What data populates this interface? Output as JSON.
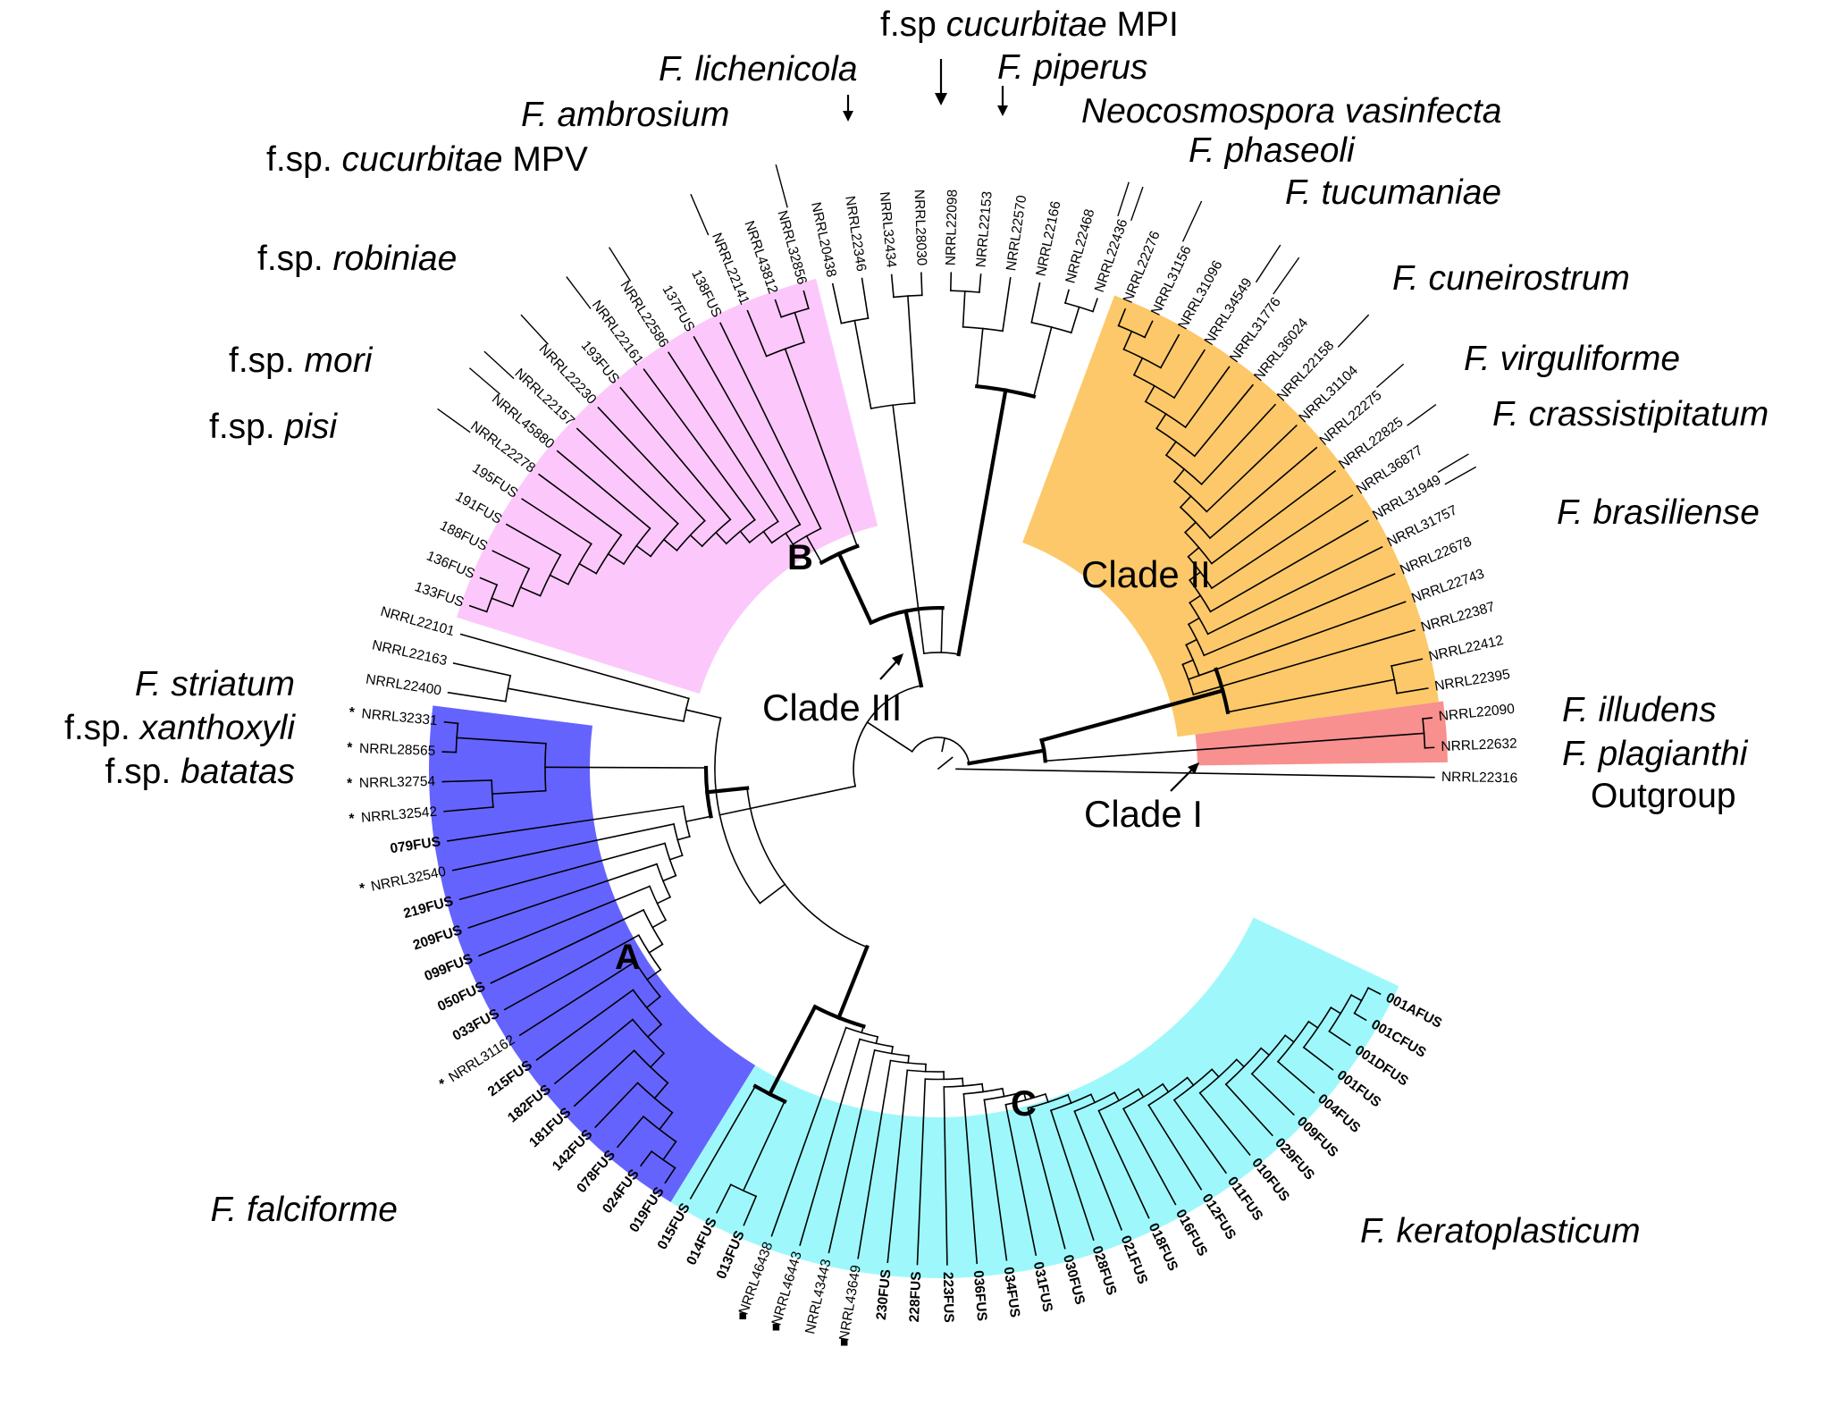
{
  "colors": {
    "pink": "#fcc8fb",
    "orange": "#fcc869",
    "red": "#f7908f",
    "blue": "#6563fd",
    "cyan": "#9ef8fb"
  },
  "nodes": {
    "A": "A",
    "B": "B",
    "C": "C"
  },
  "clades": {
    "c1": "Clade I",
    "c2": "Clade II",
    "c3": "Clade III"
  },
  "groups": {
    "cucurbitae_mpi": [
      "f.sp ",
      "cucurbitae",
      " MPI"
    ],
    "lichenicola": [
      "",
      "F. lichenicola",
      ""
    ],
    "piperus": [
      "",
      "F. piperus",
      ""
    ],
    "ambrosium": [
      "",
      "F. ambrosium",
      ""
    ],
    "neocosmospora": [
      "",
      "Neocosmospora vasinfecta",
      ""
    ],
    "cucurbitae_mpv": [
      "f.sp. ",
      "cucurbitae",
      " MPV"
    ],
    "phaseoli": [
      "",
      "F. phaseoli",
      ""
    ],
    "tucumaniae": [
      "",
      "F. tucumaniae",
      ""
    ],
    "robiniae": [
      "f.sp. ",
      "robiniae",
      ""
    ],
    "cuneirostrum": [
      "",
      "F. cuneirostrum",
      ""
    ],
    "mori": [
      "f.sp. ",
      "mori",
      ""
    ],
    "virguliforme": [
      "",
      "F. virguliforme",
      ""
    ],
    "pisi": [
      "f.sp. ",
      "pisi",
      ""
    ],
    "crassistipitatum": [
      "",
      "F. crassistipitatum",
      ""
    ],
    "brasiliense": [
      "",
      "F. brasiliense",
      ""
    ],
    "striatum": [
      "",
      "F. striatum",
      ""
    ],
    "xanthoxyli": [
      "f.sp. ",
      "xanthoxyli",
      ""
    ],
    "batatas": [
      "f.sp. ",
      "batatas",
      ""
    ],
    "illudens": [
      "",
      "F. illudens",
      ""
    ],
    "plagianthi": [
      "",
      "F. plagianthi",
      ""
    ],
    "outgroup": [
      "Outgroup",
      "",
      ""
    ],
    "falciforme": [
      "",
      "F. falciforme",
      ""
    ],
    "keratoplasticum": [
      "",
      "F. keratoplasticum",
      ""
    ]
  },
  "markers": {
    "star": "*",
    "square": "■"
  },
  "tips": [
    {
      "label": "NRRL22316",
      "bold": false
    },
    {
      "label": "NRRL22632",
      "bold": false
    },
    {
      "label": "NRRL22090",
      "bold": false
    },
    {
      "label": "NRRL22395",
      "bold": false
    },
    {
      "label": "NRRL22412",
      "bold": false
    },
    {
      "label": "NRRL22387",
      "bold": false
    },
    {
      "label": "NRRL22743",
      "bold": false
    },
    {
      "label": "NRRL22678",
      "bold": false
    },
    {
      "label": "NRRL31757",
      "bold": false
    },
    {
      "label": "NRRL31949",
      "bold": false
    },
    {
      "label": "NRRL36877",
      "bold": false
    },
    {
      "label": "NRRL22825",
      "bold": false
    },
    {
      "label": "NRRL22275",
      "bold": false
    },
    {
      "label": "NRRL31104",
      "bold": false
    },
    {
      "label": "NRRL22158",
      "bold": false
    },
    {
      "label": "NRRL36024",
      "bold": false
    },
    {
      "label": "NRRL31776",
      "bold": false
    },
    {
      "label": "NRRL34549",
      "bold": false
    },
    {
      "label": "NRRL31096",
      "bold": false
    },
    {
      "label": "NRRL31156",
      "bold": false
    },
    {
      "label": "NRRL22276",
      "bold": false
    },
    {
      "label": "NRRL22436",
      "bold": false
    },
    {
      "label": "NRRL22468",
      "bold": false
    },
    {
      "label": "NRRL22166",
      "bold": false
    },
    {
      "label": "NRRL22570",
      "bold": false
    },
    {
      "label": "NRRL22153",
      "bold": false
    },
    {
      "label": "NRRL22098",
      "bold": false
    },
    {
      "label": "NRRL28030",
      "bold": false
    },
    {
      "label": "NRRL32434",
      "bold": false
    },
    {
      "label": "NRRL22346",
      "bold": false
    },
    {
      "label": "NRRL20438",
      "bold": false
    },
    {
      "label": "NRRL32856",
      "bold": false
    },
    {
      "label": "NRRL43812",
      "bold": false
    },
    {
      "label": "NRRL22141",
      "bold": false
    },
    {
      "label": "138FUS",
      "bold": false
    },
    {
      "label": "137FUS",
      "bold": false
    },
    {
      "label": "NRRL22586",
      "bold": false
    },
    {
      "label": "NRRL22161",
      "bold": false
    },
    {
      "label": "193FUS",
      "bold": false
    },
    {
      "label": "NRRL22230",
      "bold": false
    },
    {
      "label": "NRRL22157",
      "bold": false
    },
    {
      "label": "NRRL45880",
      "bold": false
    },
    {
      "label": "NRRL22278",
      "bold": false
    },
    {
      "label": "195FUS",
      "bold": false
    },
    {
      "label": "191FUS",
      "bold": false
    },
    {
      "label": "188FUS",
      "bold": false
    },
    {
      "label": "136FUS",
      "bold": false
    },
    {
      "label": "133FUS",
      "bold": false
    },
    {
      "label": "NRRL22101",
      "bold": false
    },
    {
      "label": "NRRL22163",
      "bold": false
    },
    {
      "label": "NRRL22400",
      "bold": false
    },
    {
      "label": "NRRL32331",
      "bold": false,
      "mark": "star"
    },
    {
      "label": "NRRL28565",
      "bold": false,
      "mark": "star"
    },
    {
      "label": "NRRL32754",
      "bold": false,
      "mark": "star"
    },
    {
      "label": "NRRL32542",
      "bold": false,
      "mark": "star"
    },
    {
      "label": "079FUS",
      "bold": true
    },
    {
      "label": "NRRL32540",
      "bold": false,
      "mark": "star"
    },
    {
      "label": "219FUS",
      "bold": true
    },
    {
      "label": "209FUS",
      "bold": true
    },
    {
      "label": "099FUS",
      "bold": true
    },
    {
      "label": "050FUS",
      "bold": true
    },
    {
      "label": "033FUS",
      "bold": true
    },
    {
      "label": "NRRL31162",
      "bold": false,
      "mark": "star"
    },
    {
      "label": "215FUS",
      "bold": true
    },
    {
      "label": "182FUS",
      "bold": true
    },
    {
      "label": "181FUS",
      "bold": true
    },
    {
      "label": "142FUS",
      "bold": true
    },
    {
      "label": "078FUS",
      "bold": true
    },
    {
      "label": "024FUS",
      "bold": true
    },
    {
      "label": "019FUS",
      "bold": true
    },
    {
      "label": "015FUS",
      "bold": true
    },
    {
      "label": "014FUS",
      "bold": true
    },
    {
      "label": "013FUS",
      "bold": true
    },
    {
      "label": "NRRL46438",
      "bold": false,
      "mark": "square"
    },
    {
      "label": "NRRL46443",
      "bold": false,
      "mark": "square"
    },
    {
      "label": "NRRL43443",
      "bold": false
    },
    {
      "label": "NRRL43649",
      "bold": false,
      "mark": "square"
    },
    {
      "label": "230FUS",
      "bold": true
    },
    {
      "label": "228FUS",
      "bold": true
    },
    {
      "label": "223FUS",
      "bold": true
    },
    {
      "label": "036FUS",
      "bold": true
    },
    {
      "label": "034FUS",
      "bold": true
    },
    {
      "label": "031FUS",
      "bold": true
    },
    {
      "label": "030FUS",
      "bold": true
    },
    {
      "label": "028FUS",
      "bold": true
    },
    {
      "label": "021FUS",
      "bold": true
    },
    {
      "label": "018FUS",
      "bold": true
    },
    {
      "label": "016FUS",
      "bold": true
    },
    {
      "label": "012FUS",
      "bold": true
    },
    {
      "label": "011FUS",
      "bold": true
    },
    {
      "label": "010FUS",
      "bold": true
    },
    {
      "label": "029FUS",
      "bold": true
    },
    {
      "label": "009FUS",
      "bold": true
    },
    {
      "label": "004FUS",
      "bold": true
    },
    {
      "label": "001FUS",
      "bold": true
    },
    {
      "label": "001DFUS",
      "bold": true
    },
    {
      "label": "001CFUS",
      "bold": true
    },
    {
      "label": "001AFUS",
      "bold": true
    }
  ]
}
